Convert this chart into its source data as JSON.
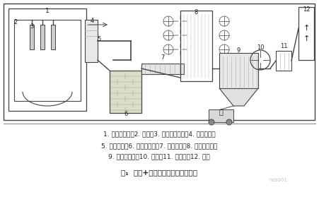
{
  "title": "图₁  水冷+机力风冷系统流程示意图",
  "legend_line1": "1. 电炉密闭罩；2. 电炉；3. 四孔水冷弯头；4. 水冷滑套；",
  "legend_line2": "5. 水冷烟道；6. 燃烧沉降室；7. 水冷烟道；8. 机力风冷器；",
  "legend_line3": "9. 布袋除尘器；10. 风机；11. 消声器；12. 烟囱",
  "bg_color": "#f5f5f0",
  "border_color": "#555555",
  "line_color": "#444444",
  "text_color": "#222222",
  "watermark": "nzb001"
}
